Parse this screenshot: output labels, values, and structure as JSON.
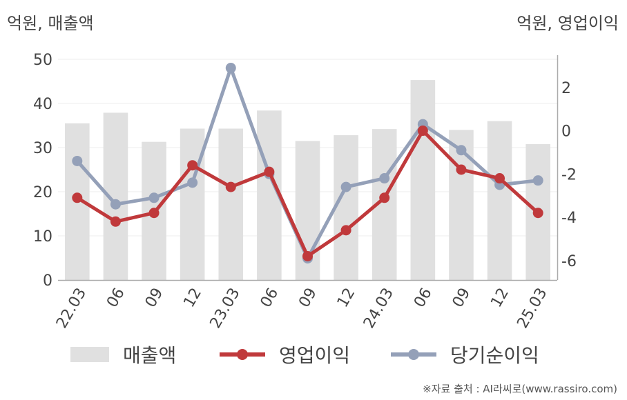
{
  "header": {
    "left_unit": "억원, 매출액",
    "right_unit": "억원, 영업이익"
  },
  "chart_data": {
    "type": "bar",
    "categories": [
      "22.03",
      "06",
      "09",
      "12",
      "23.03",
      "06",
      "09",
      "12",
      "24.03",
      "06",
      "09",
      "12",
      "25.03"
    ],
    "y_left": {
      "ylim": [
        0,
        50
      ],
      "ticks": [
        0,
        10,
        20,
        30,
        40,
        50
      ]
    },
    "y_right": {
      "ylim": [
        -6.9,
        3.3
      ],
      "ticks": [
        -6,
        -4,
        -2,
        0,
        2
      ]
    },
    "grid": true,
    "legend_position": "bottom",
    "series": [
      {
        "name": "매출액",
        "type": "bar",
        "axis": "left",
        "color": "#e0e0e0",
        "values": [
          35.5,
          37.9,
          31.3,
          34.3,
          34.3,
          38.4,
          31.5,
          32.8,
          34.2,
          45.3,
          34.0,
          36.0,
          30.8
        ]
      },
      {
        "name": "영업이익",
        "type": "line",
        "axis": "right",
        "color": "#c0393b",
        "values": [
          -3.1,
          -4.2,
          -3.8,
          -1.6,
          -2.6,
          -1.9,
          -5.8,
          -4.6,
          -3.1,
          0.0,
          -1.8,
          -2.2,
          -3.8
        ]
      },
      {
        "name": "당기순이익",
        "type": "line",
        "axis": "right",
        "color": "#94a0b8",
        "values": [
          -1.4,
          -3.4,
          -3.1,
          -2.4,
          2.9,
          -2.0,
          -5.9,
          -2.6,
          -2.2,
          0.3,
          -0.9,
          -2.5,
          -2.3
        ]
      }
    ]
  },
  "footer": {
    "source": "※자료 출처 : AI라씨로(www.rassiro.com)"
  }
}
